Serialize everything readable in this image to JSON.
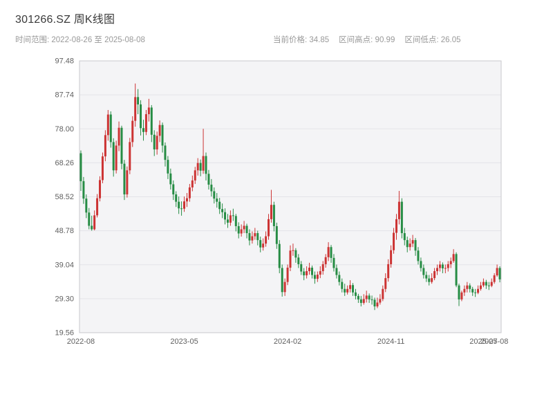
{
  "header": {
    "title": "301266.SZ 周K线图",
    "date_range": "时间范围: 2022-08-26 至 2025-08-08",
    "current_price": "当前价格: 34.85",
    "range_high": "区间高点: 90.99",
    "range_low": "区间低点: 26.05"
  },
  "chart_data": {
    "type": "candlestick",
    "title": "301266.SZ 周K线图",
    "symbol": "301266.SZ",
    "period": "weekly",
    "date_start": "2022-08-26",
    "date_end": "2025-08-08",
    "current_price": 34.85,
    "range_high": 90.99,
    "range_low": 26.05,
    "axis": {
      "y_min": 19.56,
      "y_max": 97.48,
      "y_ticks": [
        "97.48",
        "87.74",
        "78.00",
        "68.26",
        "58.52",
        "48.78",
        "39.04",
        "29.30",
        "19.56"
      ],
      "x_ticks": [
        {
          "label": "2022-08",
          "index": 0
        },
        {
          "label": "2023-05",
          "index": 38
        },
        {
          "label": "2024-02",
          "index": 76
        },
        {
          "label": "2024-11",
          "index": 114
        },
        {
          "label": "2025-07",
          "index": 148
        },
        {
          "label": "2025-08",
          "index": 152
        }
      ]
    },
    "colors": {
      "up": "#cc3333",
      "down": "#268c44",
      "plot_bg": "#f4f4f6",
      "grid": "#e3e3e8",
      "border": "#c8c8cc",
      "axis_text": "#606060"
    },
    "candles": [
      [
        71.0,
        71.8,
        60.2,
        63.0
      ],
      [
        63.0,
        64.2,
        56.5,
        58.0
      ],
      [
        58.0,
        59.2,
        52.4,
        54.0
      ],
      [
        54.0,
        55.3,
        49.2,
        50.2
      ],
      [
        50.2,
        53.1,
        48.8,
        49.2
      ],
      [
        49.2,
        54.6,
        48.9,
        53.2
      ],
      [
        53.2,
        59.3,
        52.6,
        58.1
      ],
      [
        58.1,
        64.4,
        57.2,
        63.3
      ],
      [
        63.3,
        71.2,
        62.4,
        70.1
      ],
      [
        70.1,
        77.6,
        68.7,
        76.2
      ],
      [
        76.2,
        83.4,
        74.6,
        82.1
      ],
      [
        82.1,
        83.0,
        72.6,
        74.2
      ],
      [
        74.2,
        75.3,
        64.3,
        66.1
      ],
      [
        66.1,
        74.6,
        65.2,
        73.2
      ],
      [
        73.2,
        80.1,
        71.6,
        78.3
      ],
      [
        78.3,
        78.9,
        66.4,
        68.0
      ],
      [
        68.0,
        69.1,
        57.6,
        59.2
      ],
      [
        59.2,
        67.2,
        58.3,
        66.1
      ],
      [
        66.1,
        75.4,
        65.0,
        74.2
      ],
      [
        74.2,
        81.6,
        72.8,
        80.3
      ],
      [
        80.3,
        90.99,
        78.6,
        87.1
      ],
      [
        87.1,
        89.4,
        82.2,
        85.0
      ],
      [
        85.0,
        86.2,
        76.1,
        78.2
      ],
      [
        78.2,
        80.6,
        74.6,
        77.1
      ],
      [
        77.1,
        83.4,
        76.2,
        82.2
      ],
      [
        82.2,
        86.6,
        80.1,
        84.1
      ],
      [
        84.1,
        84.8,
        74.2,
        76.3
      ],
      [
        76.3,
        77.6,
        70.2,
        72.1
      ],
      [
        72.1,
        77.2,
        70.6,
        76.0
      ],
      [
        76.0,
        80.4,
        74.2,
        79.1
      ],
      [
        79.1,
        79.8,
        71.2,
        73.2
      ],
      [
        73.2,
        74.1,
        67.2,
        69.1
      ],
      [
        69.1,
        70.2,
        63.6,
        65.2
      ],
      [
        65.2,
        66.6,
        60.6,
        62.1
      ],
      [
        62.1,
        63.2,
        57.6,
        59.2
      ],
      [
        59.2,
        60.1,
        55.6,
        57.1
      ],
      [
        57.1,
        58.6,
        53.6,
        55.2
      ],
      [
        55.2,
        57.2,
        53.1,
        55.1
      ],
      [
        55.1,
        58.6,
        54.2,
        57.2
      ],
      [
        57.2,
        59.6,
        55.6,
        58.1
      ],
      [
        58.1,
        62.2,
        57.1,
        61.2
      ],
      [
        61.2,
        64.6,
        60.1,
        63.2
      ],
      [
        63.2,
        67.1,
        62.2,
        66.1
      ],
      [
        66.1,
        69.6,
        64.6,
        68.2
      ],
      [
        68.2,
        69.2,
        64.4,
        66.0
      ],
      [
        66.0,
        78.0,
        65.1,
        70.2
      ],
      [
        70.2,
        71.2,
        63.2,
        65.1
      ],
      [
        65.1,
        66.2,
        60.6,
        62.0
      ],
      [
        62.0,
        63.6,
        58.6,
        60.1
      ],
      [
        60.1,
        61.2,
        56.6,
        58.0
      ],
      [
        58.0,
        59.6,
        55.4,
        57.1
      ],
      [
        57.1,
        58.2,
        53.6,
        55.0
      ],
      [
        55.0,
        56.6,
        52.4,
        54.1
      ],
      [
        54.1,
        55.2,
        50.6,
        52.0
      ],
      [
        52.0,
        53.6,
        49.6,
        51.1
      ],
      [
        51.1,
        54.6,
        50.2,
        53.2
      ],
      [
        53.2,
        55.1,
        51.6,
        53.0
      ],
      [
        53.0,
        53.6,
        48.6,
        50.1
      ],
      [
        50.1,
        51.2,
        46.6,
        48.0
      ],
      [
        48.0,
        50.6,
        47.1,
        49.2
      ],
      [
        49.2,
        51.6,
        48.1,
        50.2
      ],
      [
        50.2,
        50.8,
        46.6,
        48.1
      ],
      [
        48.1,
        49.2,
        44.6,
        46.0
      ],
      [
        46.0,
        48.6,
        45.1,
        47.2
      ],
      [
        47.2,
        49.6,
        46.2,
        48.1
      ],
      [
        48.1,
        48.8,
        44.6,
        46.1
      ],
      [
        46.1,
        47.1,
        42.6,
        44.0
      ],
      [
        44.0,
        46.6,
        43.1,
        45.1
      ],
      [
        45.1,
        48.6,
        44.2,
        47.2
      ],
      [
        47.2,
        53.6,
        46.2,
        52.1
      ],
      [
        52.1,
        60.5,
        51.1,
        56.2
      ],
      [
        56.2,
        57.1,
        48.6,
        50.1
      ],
      [
        50.1,
        51.1,
        43.6,
        45.0
      ],
      [
        45.0,
        46.1,
        36.6,
        38.1
      ],
      [
        38.1,
        39.1,
        29.9,
        31.2
      ],
      [
        31.2,
        35.1,
        30.1,
        34.1
      ],
      [
        34.1,
        39.1,
        33.2,
        38.2
      ],
      [
        38.2,
        44.6,
        37.2,
        43.1
      ],
      [
        43.1,
        45.1,
        41.6,
        43.2
      ],
      [
        43.2,
        43.8,
        39.6,
        41.1
      ],
      [
        41.1,
        42.1,
        38.1,
        39.2
      ],
      [
        39.2,
        40.1,
        36.1,
        37.1
      ],
      [
        37.1,
        38.1,
        34.6,
        36.0
      ],
      [
        36.0,
        38.6,
        35.1,
        37.2
      ],
      [
        37.2,
        39.6,
        36.2,
        38.2
      ],
      [
        38.2,
        38.8,
        35.1,
        36.1
      ],
      [
        36.1,
        37.1,
        33.6,
        35.0
      ],
      [
        35.0,
        37.1,
        34.1,
        36.2
      ],
      [
        36.2,
        38.6,
        35.2,
        37.2
      ],
      [
        37.2,
        40.1,
        36.2,
        39.2
      ],
      [
        39.2,
        42.1,
        38.2,
        41.2
      ],
      [
        41.2,
        45.5,
        40.1,
        44.1
      ],
      [
        44.1,
        44.7,
        39.6,
        41.0
      ],
      [
        41.0,
        42.1,
        37.1,
        38.1
      ],
      [
        38.1,
        39.1,
        35.1,
        36.1
      ],
      [
        36.1,
        37.1,
        33.1,
        34.1
      ],
      [
        34.1,
        35.1,
        31.1,
        32.1
      ],
      [
        32.1,
        33.6,
        30.1,
        31.1
      ],
      [
        31.1,
        33.1,
        30.5,
        32.1
      ],
      [
        32.1,
        34.6,
        31.1,
        33.2
      ],
      [
        33.2,
        33.8,
        30.1,
        31.1
      ],
      [
        31.1,
        32.1,
        29.1,
        30.1
      ],
      [
        30.1,
        30.7,
        28.1,
        29.1
      ],
      [
        29.1,
        30.1,
        27.1,
        28.1
      ],
      [
        28.1,
        30.6,
        27.6,
        29.2
      ],
      [
        29.2,
        31.6,
        28.2,
        30.2
      ],
      [
        30.2,
        30.8,
        28.1,
        29.1
      ],
      [
        29.1,
        30.2,
        27.6,
        29.0
      ],
      [
        29.0,
        29.6,
        26.05,
        27.1
      ],
      [
        27.1,
        29.6,
        26.6,
        28.2
      ],
      [
        28.2,
        30.6,
        27.6,
        29.2
      ],
      [
        29.2,
        33.1,
        28.6,
        32.1
      ],
      [
        32.1,
        36.6,
        31.2,
        35.2
      ],
      [
        35.2,
        40.6,
        34.2,
        39.2
      ],
      [
        39.2,
        44.6,
        38.2,
        43.2
      ],
      [
        43.2,
        49.6,
        42.2,
        48.2
      ],
      [
        48.2,
        53.6,
        46.2,
        52.1
      ],
      [
        52.1,
        60.2,
        50.6,
        57.1
      ],
      [
        57.1,
        58.1,
        46.6,
        48.1
      ],
      [
        48.1,
        49.6,
        44.6,
        46.1
      ],
      [
        46.1,
        47.1,
        42.6,
        44.1
      ],
      [
        44.1,
        46.6,
        43.1,
        45.1
      ],
      [
        45.1,
        47.6,
        44.1,
        46.1
      ],
      [
        46.1,
        46.7,
        41.6,
        43.1
      ],
      [
        43.1,
        44.1,
        39.1,
        40.1
      ],
      [
        40.1,
        41.1,
        37.1,
        38.1
      ],
      [
        38.1,
        39.1,
        35.1,
        36.1
      ],
      [
        36.1,
        37.1,
        34.1,
        35.1
      ],
      [
        35.1,
        36.1,
        33.1,
        34.1
      ],
      [
        34.1,
        36.6,
        33.6,
        35.2
      ],
      [
        35.2,
        38.1,
        34.6,
        37.2
      ],
      [
        37.2,
        39.1,
        36.1,
        38.1
      ],
      [
        38.1,
        40.1,
        37.1,
        39.1
      ],
      [
        39.1,
        39.7,
        36.6,
        38.0
      ],
      [
        38.0,
        39.1,
        36.6,
        38.1
      ],
      [
        38.1,
        40.1,
        37.1,
        39.2
      ],
      [
        39.2,
        41.1,
        38.1,
        40.1
      ],
      [
        40.1,
        43.5,
        39.6,
        42.1
      ],
      [
        42.1,
        42.6,
        32.6,
        33.1
      ],
      [
        33.1,
        33.6,
        27.2,
        29.1
      ],
      [
        29.1,
        31.6,
        28.6,
        31.1
      ],
      [
        31.1,
        33.1,
        30.1,
        32.1
      ],
      [
        32.1,
        34.1,
        31.1,
        33.1
      ],
      [
        33.1,
        33.7,
        31.1,
        32.1
      ],
      [
        32.1,
        32.7,
        30.1,
        31.1
      ],
      [
        31.1,
        32.1,
        29.8,
        31.0
      ],
      [
        31.0,
        33.1,
        30.6,
        32.1
      ],
      [
        32.1,
        34.1,
        31.6,
        33.1
      ],
      [
        33.1,
        35.1,
        32.6,
        34.1
      ],
      [
        34.1,
        34.7,
        32.1,
        33.1
      ],
      [
        33.1,
        34.1,
        31.8,
        33.0
      ],
      [
        33.0,
        35.1,
        32.6,
        34.1
      ],
      [
        34.1,
        36.6,
        33.6,
        36.0
      ],
      [
        36.0,
        39.1,
        35.6,
        38.1
      ],
      [
        38.1,
        38.6,
        34.0,
        34.85
      ]
    ]
  }
}
